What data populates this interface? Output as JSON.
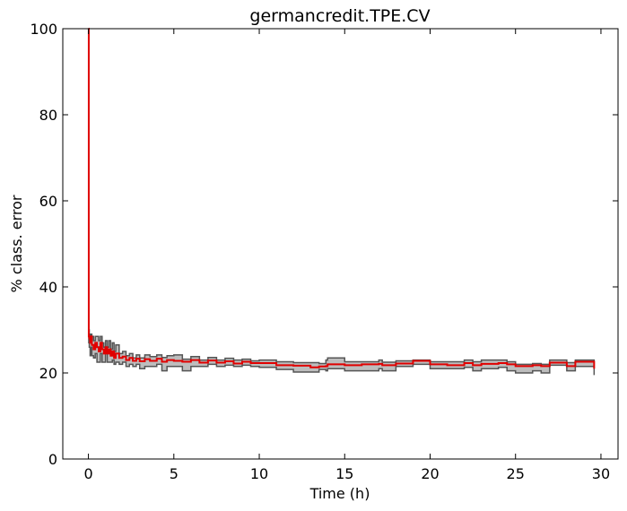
{
  "chart_data": {
    "type": "line",
    "title": "germancredit.TPE.CV",
    "xlabel": "Time (h)",
    "ylabel": "% class. error",
    "xlim": [
      -1.5,
      31
    ],
    "ylim": [
      0,
      100
    ],
    "xticks": [
      0,
      5,
      10,
      15,
      20,
      25,
      30
    ],
    "yticks": [
      0,
      20,
      40,
      60,
      80,
      100
    ],
    "grid": false,
    "colors": {
      "mean_line": "#e00000",
      "band_fill": "#bdbdbd",
      "band_edge": "#555555"
    },
    "series": [
      {
        "values": {
          "x": [
            0.0,
            0.02,
            0.05,
            0.1,
            0.15,
            0.2,
            0.3,
            0.4,
            0.5,
            0.6,
            0.7,
            0.8,
            0.9,
            1.0,
            1.1,
            1.2,
            1.3,
            1.4,
            1.5,
            1.6,
            1.8,
            2.0,
            2.2,
            2.4,
            2.6,
            2.8,
            3.0,
            3.3,
            3.6,
            4.0,
            4.3,
            4.6,
            5.0,
            5.5,
            6.0,
            6.5,
            7.0,
            7.5,
            8.0,
            8.5,
            9.0,
            9.5,
            10.0,
            11.0,
            12.0,
            13.0,
            13.5,
            13.9,
            14.0,
            15.0,
            16.0,
            17.0,
            17.2,
            18.0,
            19.0,
            20.0,
            21.0,
            22.0,
            22.5,
            23.0,
            24.0,
            24.5,
            25.0,
            26.0,
            26.5,
            27.0,
            28.0,
            28.5,
            29.6
          ],
          "mean": [
            100,
            28.5,
            28,
            27,
            28.5,
            26.5,
            25.5,
            27,
            26,
            25,
            27,
            25.5,
            24.5,
            26,
            24.5,
            25.5,
            24,
            25,
            23.5,
            24.5,
            23.5,
            23.8,
            23,
            23.5,
            22.8,
            23.3,
            22.7,
            23.2,
            22.8,
            23.3,
            22.6,
            23,
            22.8,
            22.6,
            23,
            22.4,
            22.9,
            22.4,
            22.7,
            22.2,
            22.6,
            22.3,
            22.3,
            21.8,
            21.7,
            21.3,
            21.5,
            21.6,
            22.0,
            21.8,
            22.0,
            22.1,
            21.8,
            22.2,
            22.8,
            22.0,
            21.8,
            22.3,
            21.8,
            22.1,
            22.3,
            22.0,
            21.6,
            21.8,
            21.6,
            22.4,
            21.6,
            22.6,
            21.0
          ],
          "upper": [
            100,
            30,
            29,
            28.5,
            29,
            28.5,
            27.5,
            28.5,
            28.5,
            27.5,
            28.5,
            27,
            26,
            27.5,
            26,
            27.5,
            25.5,
            27,
            25,
            26.5,
            24.5,
            25,
            24,
            24.5,
            23.5,
            24.2,
            23.5,
            24.2,
            23.8,
            24.2,
            23.6,
            24,
            24.2,
            23.2,
            23.8,
            23,
            23.6,
            23,
            23.4,
            23,
            23.2,
            22.8,
            23.0,
            22.6,
            22.4,
            22.4,
            22.2,
            23.0,
            23.5,
            22.6,
            22.6,
            23.0,
            22.5,
            22.8,
            23.0,
            22.6,
            22.6,
            23.0,
            22.6,
            23.0,
            23.0,
            22.6,
            22.0,
            22.2,
            22.0,
            23.0,
            22.4,
            23.0,
            23.0
          ],
          "lower": [
            100,
            27,
            26,
            24,
            26,
            24,
            23.5,
            24.5,
            22.5,
            22.5,
            24.5,
            22.5,
            22.5,
            24.5,
            22.5,
            22.5,
            22.5,
            23,
            22,
            22.5,
            22,
            22.5,
            21.5,
            22,
            21.5,
            22,
            21,
            21.5,
            21.5,
            22,
            20.5,
            21.5,
            21.5,
            20.5,
            21.5,
            21.5,
            22,
            21.5,
            21.8,
            21.5,
            21.8,
            21.5,
            21.3,
            20.8,
            20.2,
            20.2,
            20.8,
            20.5,
            21.0,
            20.5,
            20.5,
            21.0,
            20.5,
            21.5,
            22.0,
            21.0,
            21.0,
            21.3,
            20.5,
            21.0,
            21.3,
            20.5,
            20.0,
            20.5,
            20.0,
            21.8,
            20.5,
            21.5,
            19.5
          ]
        }
      }
    ]
  }
}
